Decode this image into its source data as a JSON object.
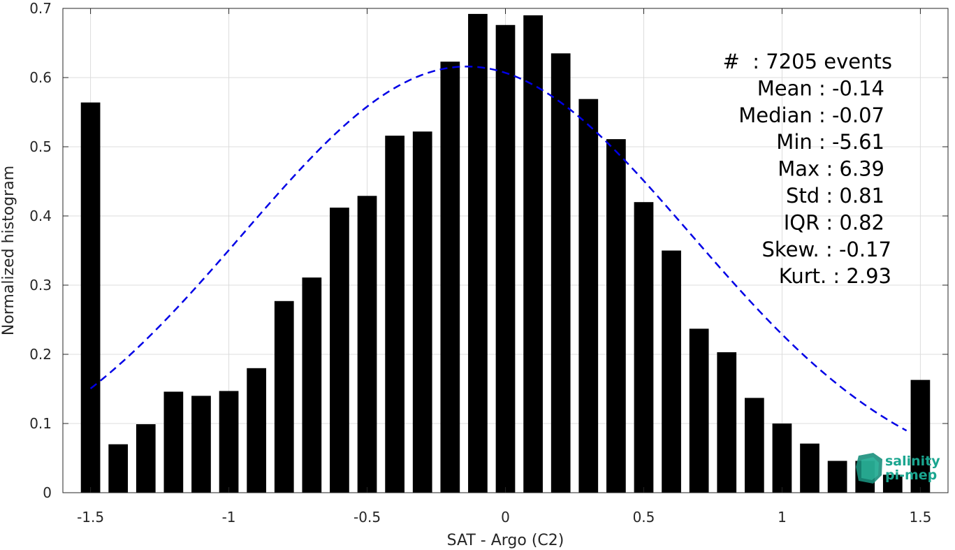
{
  "chart_data": {
    "type": "bar",
    "xlabel": "SAT - Argo (C2)",
    "ylabel": "Normalized histogram",
    "xlim": [
      -1.6,
      1.6
    ],
    "ylim": [
      0,
      0.7
    ],
    "xticks": [
      -1.5,
      -1,
      -0.5,
      0,
      0.5,
      1,
      1.5
    ],
    "xtick_labels": [
      "-1.5",
      "-1",
      "-0.5",
      "0",
      "0.5",
      "1",
      "1.5"
    ],
    "yticks": [
      0,
      0.1,
      0.2,
      0.3,
      0.4,
      0.5,
      0.6,
      0.7
    ],
    "ytick_labels": [
      "0",
      "0.1",
      "0.2",
      "0.3",
      "0.4",
      "0.5",
      "0.6",
      "0.7"
    ],
    "grid": true,
    "bar_color": "#000000",
    "bar_width": 0.07,
    "x": [
      -1.5,
      -1.4,
      -1.3,
      -1.2,
      -1.1,
      -1.0,
      -0.9,
      -0.8,
      -0.7,
      -0.6,
      -0.5,
      -0.4,
      -0.3,
      -0.2,
      -0.1,
      0.0,
      0.1,
      0.2,
      0.3,
      0.4,
      0.5,
      0.6,
      0.7,
      0.8,
      0.9,
      1.0,
      1.1,
      1.2,
      1.3,
      1.4,
      1.5
    ],
    "values": [
      0.564,
      0.07,
      0.099,
      0.146,
      0.14,
      0.147,
      0.18,
      0.277,
      0.311,
      0.412,
      0.429,
      0.516,
      0.522,
      0.623,
      0.692,
      0.676,
      0.69,
      0.635,
      0.569,
      0.511,
      0.42,
      0.35,
      0.237,
      0.203,
      0.137,
      0.1,
      0.071,
      0.046,
      0.046,
      0.026,
      0.163
    ],
    "fit_curve": {
      "type": "normal",
      "mean": -0.14,
      "std": 0.81,
      "peak": 0.616,
      "x_range": [
        -1.5,
        1.45
      ],
      "color": "#0000e6",
      "style": "dashed"
    },
    "stats_box": {
      "placement": "top-right",
      "lines": [
        "#  : 7205 events",
        "Mean : -0.14",
        "Median : -0.07",
        "Min : -5.61",
        "Max : 6.39",
        "Std : 0.81",
        "IQR : 0.82",
        "Skew. : -0.17",
        "Kurt. : 2.93"
      ]
    }
  },
  "logo": {
    "line1": "salinity",
    "line2": "pi-mep",
    "color": "#1aa58f"
  }
}
